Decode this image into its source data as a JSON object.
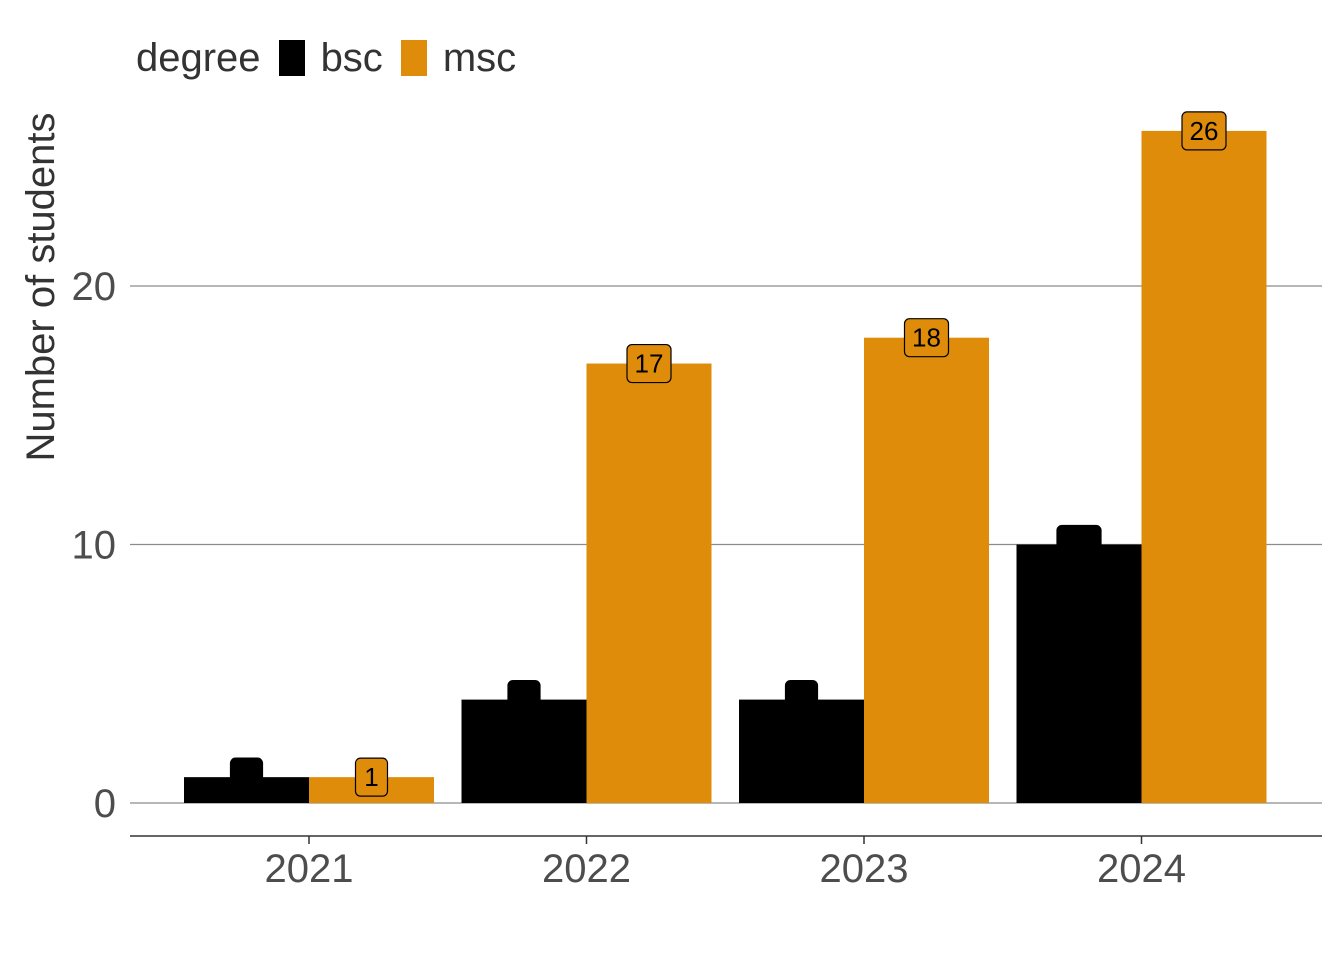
{
  "legend": {
    "title": "degree",
    "items": [
      {
        "label": "bsc",
        "color": "#000000"
      },
      {
        "label": "msc",
        "color": "#DE8C0A"
      }
    ]
  },
  "chart_data": {
    "type": "bar",
    "title": "",
    "xlabel": "",
    "ylabel": "Number of students",
    "categories": [
      "2021",
      "2022",
      "2023",
      "2024"
    ],
    "series": [
      {
        "name": "bsc",
        "color": "#000000",
        "values": [
          1,
          4,
          4,
          10
        ]
      },
      {
        "name": "msc",
        "color": "#DE8C0A",
        "values": [
          1,
          17,
          18,
          26
        ]
      }
    ],
    "data_labels": {
      "bsc": [
        "1",
        "4",
        "4",
        "10"
      ],
      "msc": [
        "1",
        "17",
        "18",
        "26"
      ]
    },
    "yticks": [
      0,
      10,
      20
    ],
    "ylim": [
      0,
      26
    ],
    "grid": "horizontal",
    "legend_position": "top-left"
  }
}
